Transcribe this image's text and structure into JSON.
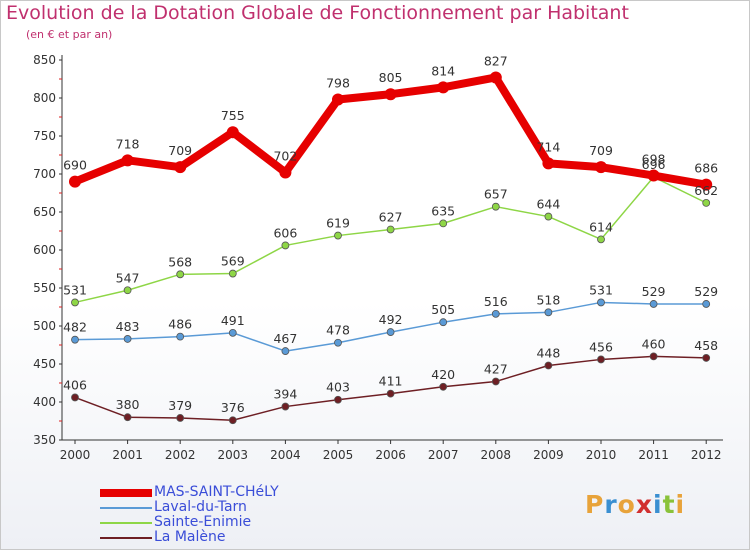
{
  "title": "Evolution de la Dotation Globale de Fonctionnement par Habitant",
  "subtitle": "(en € et par an)",
  "logo": {
    "letters": [
      "P",
      "r",
      "o",
      "x",
      "i",
      "t",
      "i"
    ],
    "colors": [
      "#e8a33a",
      "#3a8fd1",
      "#e8a33a",
      "#d12f2f",
      "#3a8fd1",
      "#8ac23a",
      "#e8a33a"
    ]
  },
  "chart_data": {
    "type": "line",
    "title": "Evolution de la Dotation Globale de Fonctionnement par Habitant",
    "subtitle": "(en € et par an)",
    "xlabel": "",
    "ylabel": "",
    "categories": [
      "2000",
      "2001",
      "2002",
      "2003",
      "2004",
      "2005",
      "2006",
      "2007",
      "2008",
      "2009",
      "2010",
      "2011",
      "2012"
    ],
    "ylim": [
      350,
      850
    ],
    "yticks": [
      350,
      400,
      450,
      500,
      550,
      600,
      650,
      700,
      750,
      800,
      850
    ],
    "grid": false,
    "legend_position": "bottom-left",
    "series": [
      {
        "name": "MAS-SAINT-CHéLY",
        "color": "#e60000",
        "line_width": 8,
        "marker_radius": 6,
        "label_offset": -1,
        "values": [
          690,
          718,
          709,
          755,
          702,
          798,
          805,
          814,
          827,
          714,
          709,
          698,
          686
        ],
        "labels": [
          "690",
          "718",
          "709",
          "755",
          "702",
          "798",
          "805",
          "814",
          "827",
          "714",
          "709",
          "698",
          "686"
        ]
      },
      {
        "name": "Laval-du-Tarn",
        "color": "#5a9ad6",
        "line_width": 1.5,
        "marker_radius": 3.5,
        "label_offset": -1,
        "values": [
          482,
          483,
          486,
          491,
          467,
          478,
          492,
          505,
          516,
          518,
          531,
          529,
          529
        ],
        "labels": [
          "482",
          "483",
          "486",
          "491",
          "467",
          "478",
          "492",
          "505",
          "516",
          "518",
          "531",
          "529",
          "529"
        ]
      },
      {
        "name": "Sainte-Enimie",
        "color": "#8ed646",
        "line_width": 1.5,
        "marker_radius": 3.5,
        "label_offset": -1,
        "values": [
          531,
          547,
          568,
          569,
          606,
          619,
          627,
          635,
          657,
          644,
          614,
          696,
          662
        ],
        "labels": [
          "531",
          "547",
          "568",
          "569",
          "606",
          "619",
          "627",
          "635",
          "657",
          "644",
          "614",
          "696",
          "662"
        ]
      },
      {
        "name": "La Malène",
        "color": "#6e1f24",
        "line_width": 1.5,
        "marker_radius": 3.5,
        "label_offset": -1,
        "values": [
          406,
          380,
          379,
          376,
          394,
          403,
          411,
          420,
          427,
          448,
          456,
          460,
          458
        ],
        "labels": [
          "406",
          "380",
          "379",
          "376",
          "394",
          "403",
          "411",
          "420",
          "427",
          "448",
          "456",
          "460",
          "458"
        ]
      }
    ]
  }
}
